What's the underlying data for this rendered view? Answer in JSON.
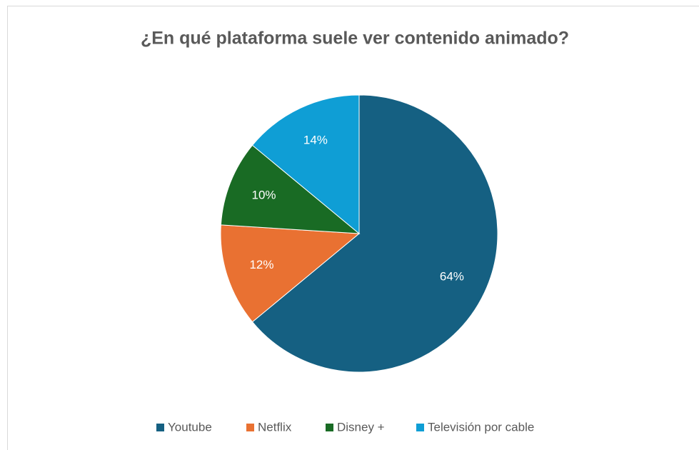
{
  "chart_data": {
    "type": "pie",
    "title": "¿En qué plataforma suele ver contenido animado?",
    "categories": [
      "Youtube",
      "Netflix",
      "Disney +",
      "Televisión por cable"
    ],
    "values": [
      64,
      12,
      10,
      14
    ],
    "value_labels": [
      "64%",
      "12%",
      "10%",
      "14%"
    ],
    "colors": [
      "#156082",
      "#e97132",
      "#196b24",
      "#0f9ed5"
    ],
    "legend": "bottom"
  }
}
